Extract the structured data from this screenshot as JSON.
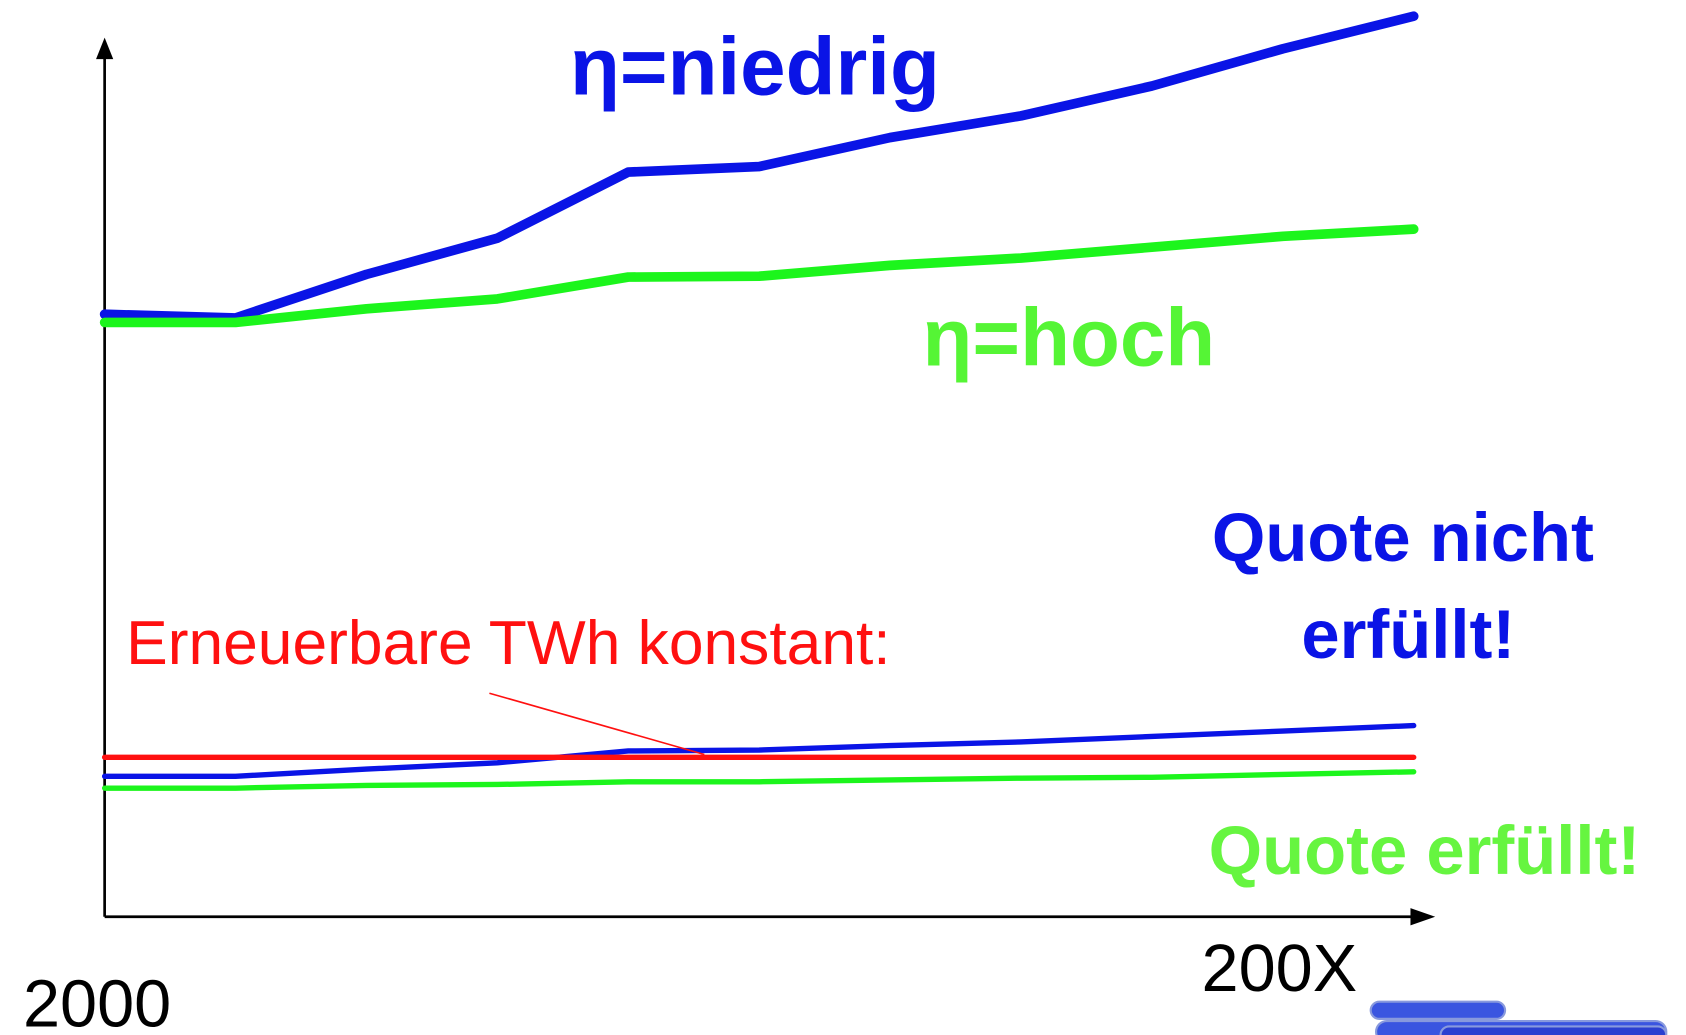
{
  "chart_data": {
    "type": "line",
    "categories": [
      "2000",
      null,
      null,
      null,
      null,
      null,
      null,
      null,
      null,
      null,
      "200X"
    ],
    "ylim": [
      0,
      100
    ],
    "series": [
      {
        "color": "#0a14e6",
        "values": [
          66.5,
          66.1,
          70.9,
          74.9,
          82.2,
          82.8,
          86.0,
          88.4,
          91.7,
          95.8,
          99.4
        ]
      },
      {
        "color": "#1cf51c",
        "values": [
          65.6,
          65.6,
          67.1,
          68.2,
          70.6,
          70.7,
          71.9,
          72.7,
          73.9,
          75.1,
          75.9
        ]
      },
      {
        "color": "#0a14e6",
        "values": [
          15.5,
          15.5,
          16.3,
          17.0,
          18.3,
          18.4,
          18.9,
          19.3,
          19.9,
          20.5,
          21.1
        ]
      },
      {
        "color": "#1cf51c",
        "values": [
          14.2,
          14.2,
          14.5,
          14.6,
          14.9,
          14.9,
          15.1,
          15.3,
          15.4,
          15.7,
          16.0
        ]
      },
      {
        "color": "#ff1010",
        "values": [
          17.6,
          17.6,
          17.6,
          17.6,
          17.6,
          17.6,
          17.6,
          17.6,
          17.6,
          17.6,
          17.6
        ]
      }
    ],
    "annotations": [
      "η=niedrig",
      "η=hoch",
      "Quote nicht",
      "erfüllt!",
      "Quote erfüllt!",
      "Erneuerbare TWh konstant:"
    ]
  }
}
